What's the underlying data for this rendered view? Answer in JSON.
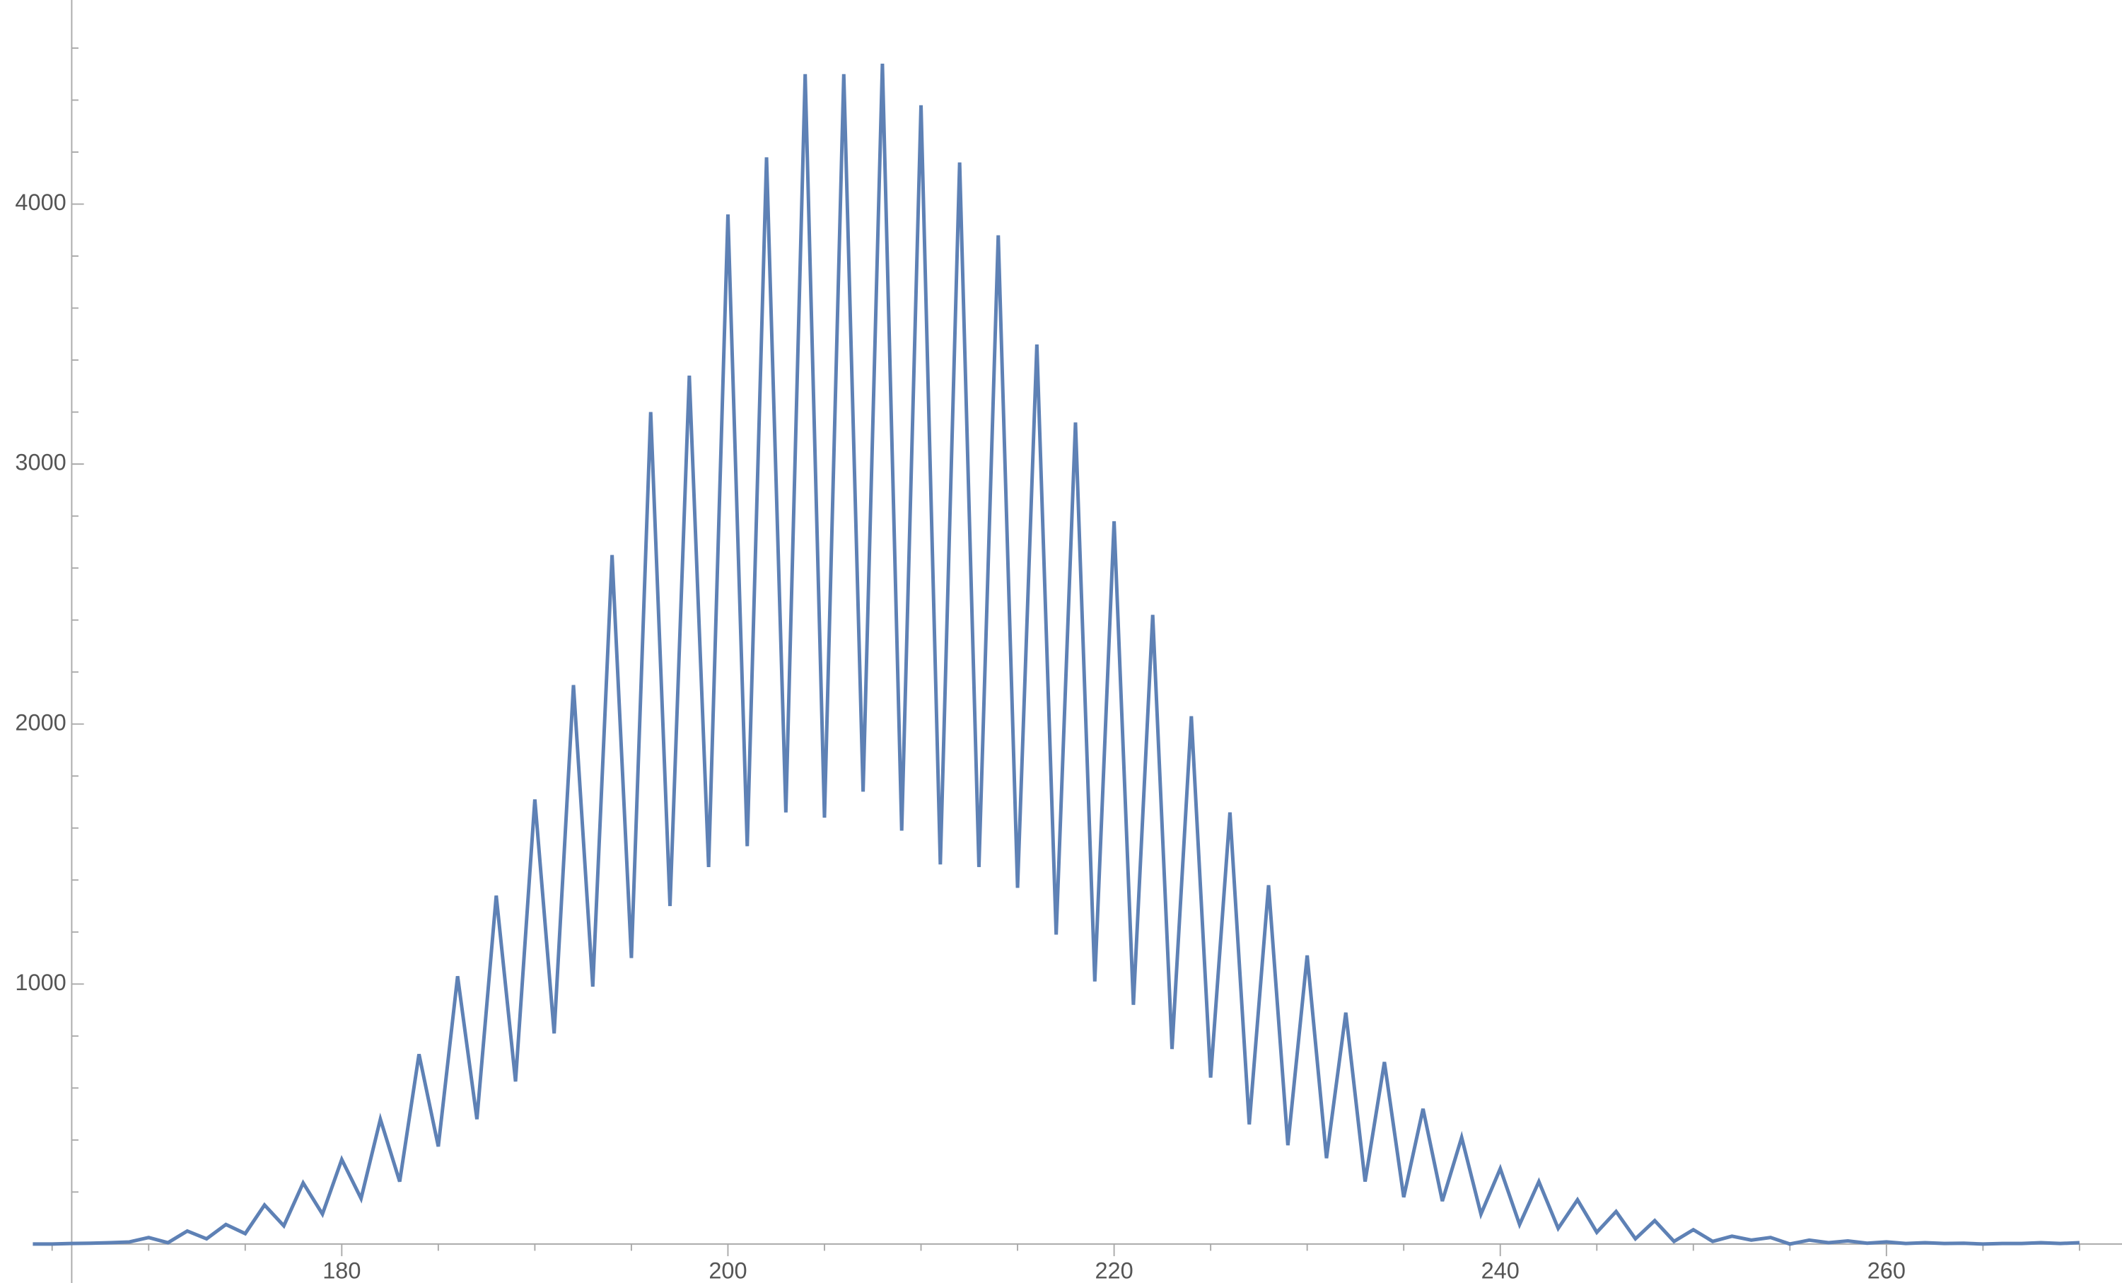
{
  "chart_data": {
    "type": "line",
    "x": [
      164,
      165,
      166,
      167,
      168,
      169,
      170,
      171,
      172,
      173,
      174,
      175,
      176,
      177,
      178,
      179,
      180,
      181,
      182,
      183,
      184,
      185,
      186,
      187,
      188,
      189,
      190,
      191,
      192,
      193,
      194,
      195,
      196,
      197,
      198,
      199,
      200,
      201,
      202,
      203,
      204,
      205,
      206,
      207,
      208,
      209,
      210,
      211,
      212,
      213,
      214,
      215,
      216,
      217,
      218,
      219,
      220,
      221,
      222,
      223,
      224,
      225,
      226,
      227,
      228,
      229,
      230,
      231,
      232,
      233,
      234,
      235,
      236,
      237,
      238,
      239,
      240,
      241,
      242,
      243,
      244,
      245,
      246,
      247,
      248,
      249,
      250,
      251,
      252,
      253,
      254,
      255,
      256,
      257,
      258,
      259,
      260,
      261,
      262,
      263,
      264,
      265,
      266,
      267,
      268,
      269,
      270
    ],
    "values": [
      0,
      0,
      2,
      3,
      5,
      8,
      25,
      5,
      50,
      20,
      75,
      40,
      150,
      70,
      235,
      115,
      325,
      175,
      480,
      240,
      730,
      375,
      1030,
      480,
      1340,
      625,
      1710,
      810,
      2150,
      990,
      2650,
      1100,
      3200,
      1300,
      3340,
      1450,
      3960,
      1530,
      4180,
      1660,
      4500,
      1640,
      4500,
      1740,
      4540,
      1590,
      4380,
      1460,
      4160,
      1450,
      3880,
      1370,
      3460,
      1190,
      3160,
      1010,
      2780,
      920,
      2420,
      750,
      2030,
      640,
      1660,
      460,
      1380,
      380,
      1110,
      330,
      890,
      240,
      700,
      180,
      520,
      165,
      410,
      115,
      290,
      75,
      240,
      60,
      170,
      45,
      125,
      20,
      90,
      10,
      55,
      10,
      30,
      15,
      25,
      0,
      15,
      5,
      12,
      3,
      8,
      2,
      5,
      2,
      3,
      0,
      2,
      2,
      5,
      2,
      5
    ],
    "color": "#5e81b5",
    "xlim": [
      162.3,
      272.2
    ],
    "ylim": [
      -150,
      4785
    ],
    "xticks": [
      180,
      200,
      220,
      240,
      260
    ],
    "yticks": [
      1000,
      2000,
      3000,
      4000
    ],
    "xminorticks": [
      165,
      170,
      175,
      185,
      190,
      195,
      205,
      210,
      215,
      225,
      230,
      235,
      245,
      250,
      255,
      265,
      270
    ],
    "yminorticks": [
      200,
      400,
      600,
      800,
      1200,
      1400,
      1600,
      1800,
      2200,
      2400,
      2600,
      2800,
      3200,
      3400,
      3600,
      3800,
      4200,
      4400,
      4600
    ]
  }
}
